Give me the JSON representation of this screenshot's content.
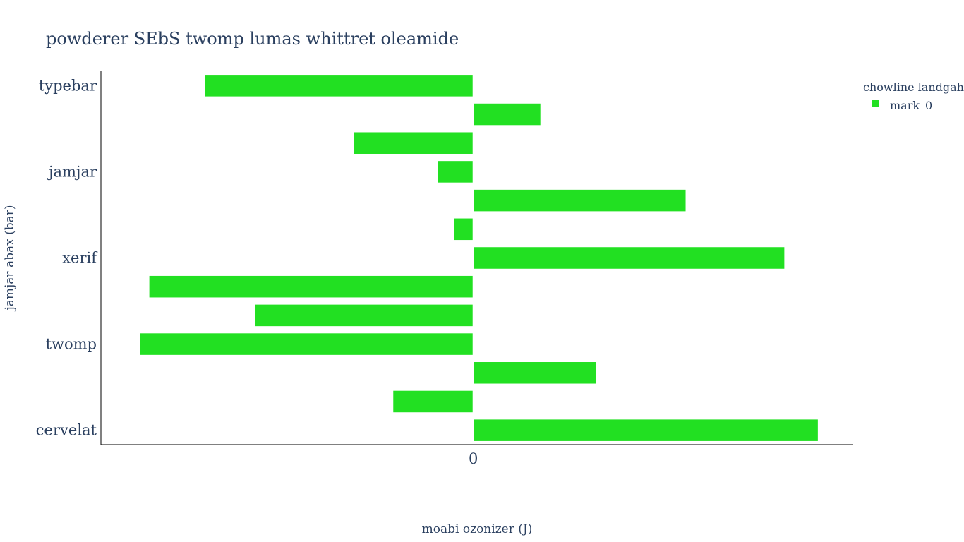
{
  "chart_data": {
    "type": "bar",
    "orientation": "horizontal",
    "title": "powderer SEbS twomp lumas whittret oleamide",
    "xlabel": "moabi ozonizer (J)",
    "ylabel": "jamjar abax (bar)",
    "x_ticks": [
      "0"
    ],
    "y_tick_labels": [
      "typebar",
      "jamjar",
      "xerif",
      "twomp",
      "cervelat"
    ],
    "legend": {
      "title": "chowline landgah",
      "position": "top-right"
    },
    "bar_color": "#22e022",
    "xlim": [
      -1.0,
      1.02
    ],
    "series": [
      {
        "name": "mark_0",
        "values": [
          -0.72,
          0.18,
          -0.32,
          -0.095,
          0.57,
          -0.052,
          0.835,
          -0.87,
          -0.585,
          -0.895,
          0.33,
          -0.215,
          0.925
        ]
      }
    ]
  }
}
